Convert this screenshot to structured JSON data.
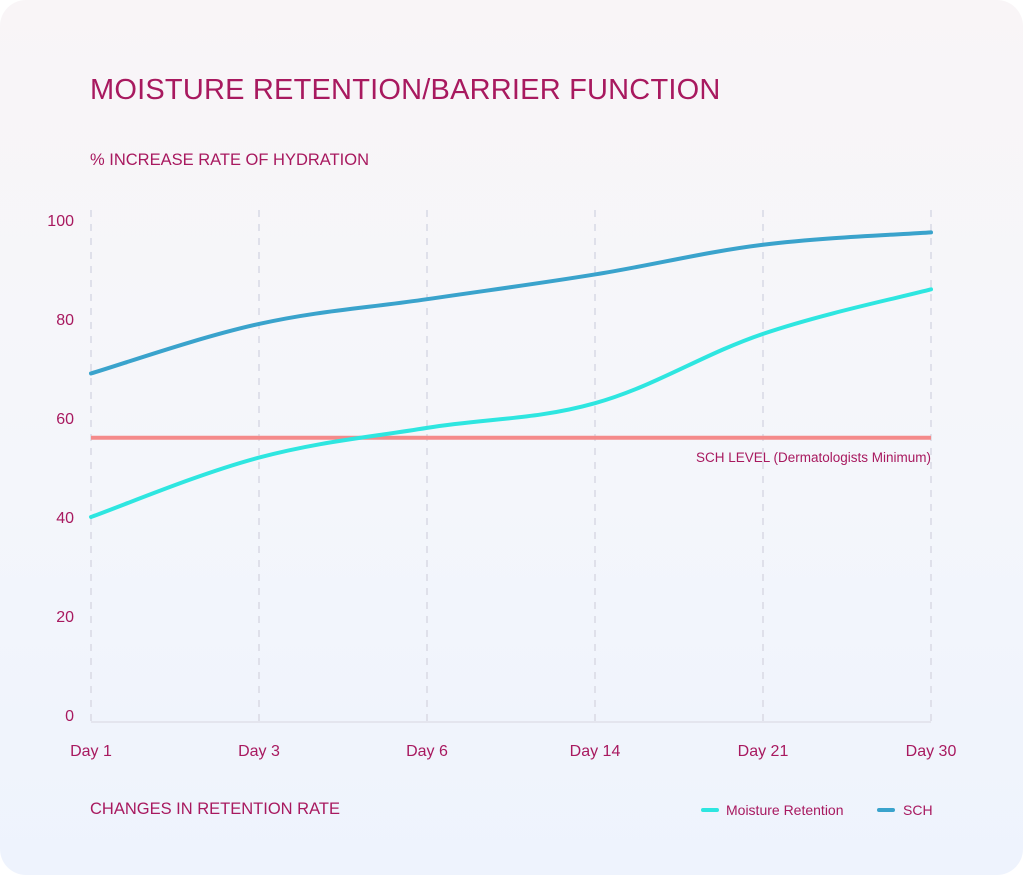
{
  "chart_data": {
    "type": "line",
    "title": "MOISTURE RETENTION/BARRIER FUNCTION",
    "ylabel": "% INCREASE RATE OF HYDRATION",
    "xlabel": "CHANGES IN RETENTION RATE",
    "categories": [
      "Day 1",
      "Day 3",
      "Day 6",
      "Day 14",
      "Day 21",
      "Day 30"
    ],
    "ylim": [
      0,
      100
    ],
    "yticks": [
      0,
      20,
      40,
      60,
      80,
      100
    ],
    "grid": "vertical-dashed",
    "legend_position": "bottom-right",
    "series": [
      {
        "name": "Moisture Retention",
        "color": "#2ee6e0",
        "values": [
          40,
          52,
          58,
          63,
          77,
          86
        ]
      },
      {
        "name": "SCH",
        "color": "#3aa3cc",
        "values": [
          69,
          79,
          84,
          89,
          95,
          97.5
        ]
      }
    ],
    "reference_line": {
      "label": "SCH LEVEL (Dermatologists Minimum)",
      "value": 56,
      "color": "#f48a8a"
    }
  }
}
